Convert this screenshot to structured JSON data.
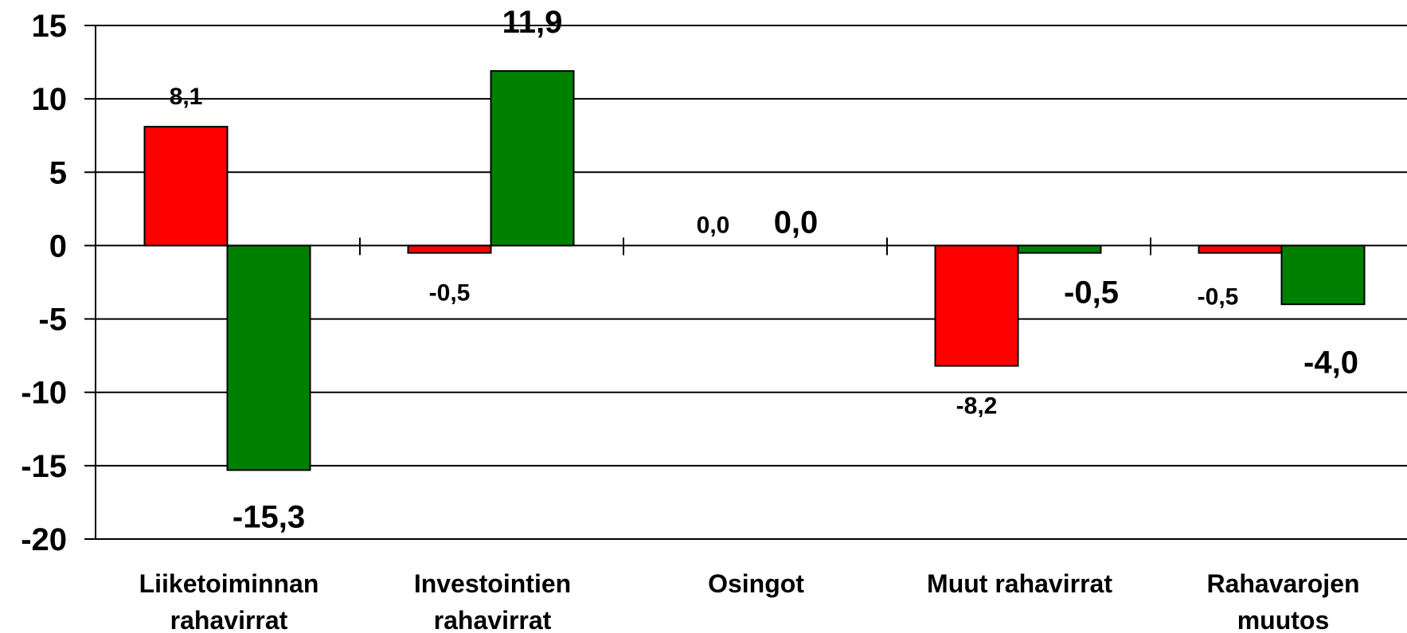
{
  "chart_data": {
    "type": "bar",
    "categories": [
      [
        "Liiketoiminnan",
        "rahavirrat"
      ],
      [
        "Investointien",
        "rahavirrat"
      ],
      [
        "Osingot"
      ],
      [
        "Muut rahavirrat"
      ],
      [
        "Rahavarojen",
        "muutos"
      ]
    ],
    "series": [
      {
        "color": "#ff0000",
        "values": [
          8.1,
          -0.5,
          0.0,
          -8.2,
          -0.5
        ],
        "labels": [
          "8,1",
          "-0,5",
          "0,0",
          "-8,2",
          "-0,5"
        ]
      },
      {
        "color": "#008000",
        "values": [
          -15.3,
          11.9,
          0.0,
          -0.5,
          -4.0
        ],
        "labels": [
          "-15,3",
          "11,9",
          "0,0",
          "-0,5",
          "-4,0"
        ]
      }
    ],
    "ylim": [
      -20,
      15
    ],
    "yticks": [
      15,
      10,
      5,
      0,
      -5,
      -10,
      -15,
      -20
    ],
    "ytick_labels": [
      "15",
      "10",
      "5",
      "0",
      "-5",
      "-10",
      "-15",
      "-20"
    ],
    "grid": true,
    "legend": "none"
  }
}
